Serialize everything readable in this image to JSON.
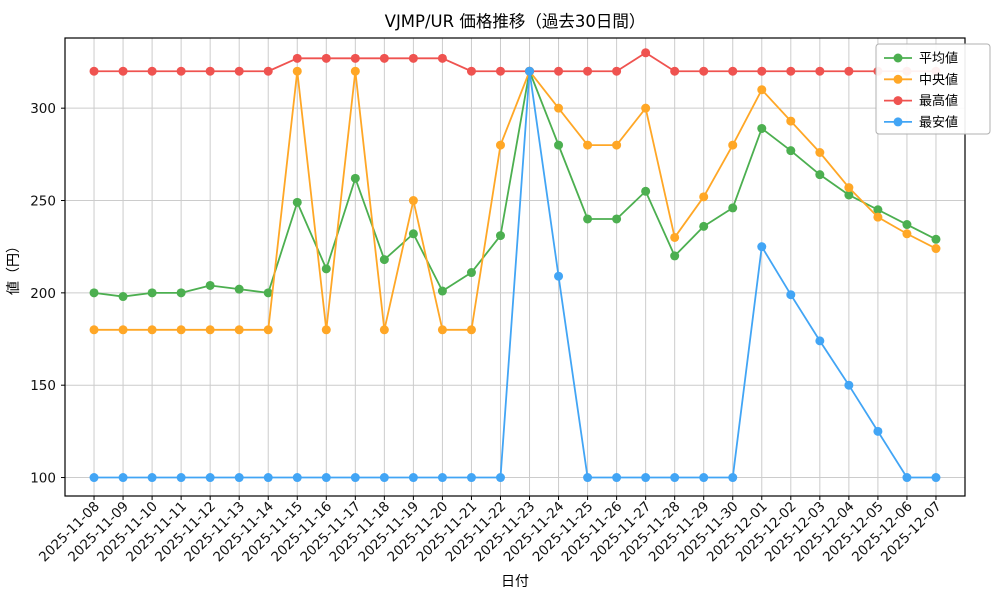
{
  "chart_data": {
    "type": "line",
    "title": "VJMP/UR 価格推移（過去30日間）",
    "xlabel": "日付",
    "ylabel": "値（円）",
    "grid": true,
    "legend_position": "top-right",
    "ylim": [
      90,
      338
    ],
    "yticks": [
      100,
      150,
      200,
      250,
      300
    ],
    "x": [
      "2025-11-08",
      "2025-11-09",
      "2025-11-10",
      "2025-11-11",
      "2025-11-12",
      "2025-11-13",
      "2025-11-14",
      "2025-11-15",
      "2025-11-16",
      "2025-11-17",
      "2025-11-18",
      "2025-11-19",
      "2025-11-20",
      "2025-11-21",
      "2025-11-22",
      "2025-11-23",
      "2025-11-24",
      "2025-11-25",
      "2025-11-26",
      "2025-11-27",
      "2025-11-28",
      "2025-11-29",
      "2025-11-30",
      "2025-12-01",
      "2025-12-02",
      "2025-12-03",
      "2025-12-04",
      "2025-12-05",
      "2025-12-06",
      "2025-12-07"
    ],
    "series": [
      {
        "name": "平均値",
        "color": "#4caf50",
        "values": [
          200,
          198,
          200,
          200,
          204,
          202,
          200,
          249,
          213,
          262,
          218,
          232,
          201,
          211,
          231,
          320,
          280,
          240,
          240,
          255,
          220,
          236,
          246,
          289,
          277,
          264,
          253,
          245,
          237,
          229
        ]
      },
      {
        "name": "中央値",
        "color": "#ffa726",
        "values": [
          180,
          180,
          180,
          180,
          180,
          180,
          180,
          320,
          180,
          320,
          180,
          250,
          180,
          180,
          280,
          320,
          300,
          280,
          280,
          300,
          230,
          252,
          280,
          310,
          293,
          276,
          257,
          241,
          232,
          224
        ]
      },
      {
        "name": "最高値",
        "color": "#ef5350",
        "values": [
          320,
          320,
          320,
          320,
          320,
          320,
          320,
          327,
          327,
          327,
          327,
          327,
          327,
          320,
          320,
          320,
          320,
          320,
          320,
          330,
          320,
          320,
          320,
          320,
          320,
          320,
          320,
          320,
          320,
          320
        ]
      },
      {
        "name": "最安値",
        "color": "#42a5f5",
        "values": [
          100,
          100,
          100,
          100,
          100,
          100,
          100,
          100,
          100,
          100,
          100,
          100,
          100,
          100,
          100,
          320,
          209,
          100,
          100,
          100,
          100,
          100,
          100,
          225,
          199,
          174,
          150,
          125,
          100,
          100
        ]
      }
    ]
  }
}
